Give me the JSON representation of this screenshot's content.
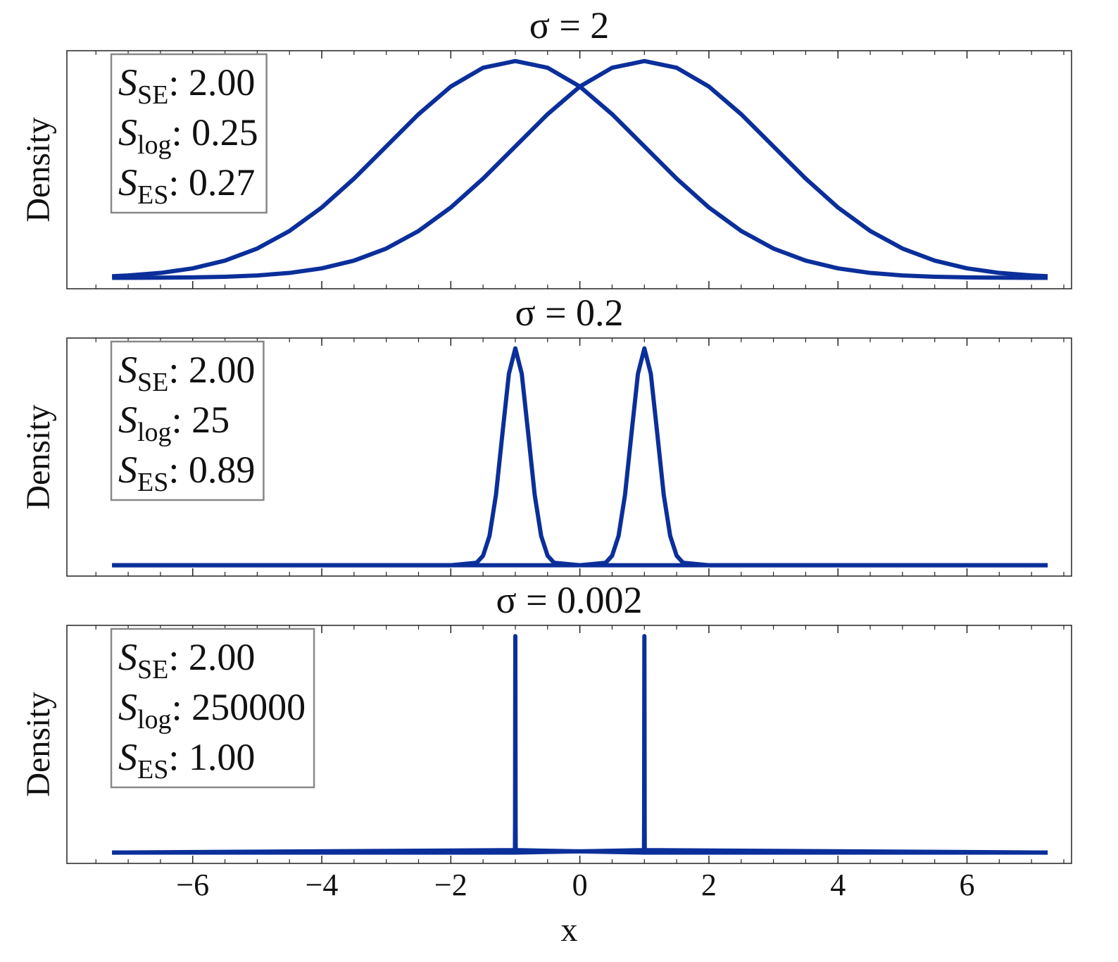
{
  "chart_data": [
    {
      "type": "line",
      "title": "σ = 2",
      "ylabel": "Density",
      "x": [
        -7.25,
        -7,
        -6.5,
        -6,
        -5.5,
        -5,
        -4.5,
        -4,
        -3.5,
        -3,
        -2.5,
        -2,
        -1.5,
        -1,
        -0.5,
        0,
        0.5,
        1,
        1.5,
        2,
        2.5,
        3,
        3.5,
        4,
        4.5,
        5,
        5.5,
        6,
        6.5,
        7,
        7.25
      ],
      "series": [
        {
          "color": "#0b2f9a",
          "values": [
            0.00151,
            0.00222,
            0.00455,
            0.00876,
            0.01587,
            0.027,
            0.04314,
            0.06476,
            0.09132,
            0.12098,
            0.15057,
            0.17603,
            0.19333,
            0.19947,
            0.19333,
            0.17603,
            0.15057,
            0.12098,
            0.09132,
            0.06476,
            0.04314,
            0.027,
            0.01587,
            0.00876,
            0.00455,
            0.00222,
            0.00101,
            0.00044,
            0.00018,
            7e-05,
            4e-05
          ]
        },
        {
          "color": "#0b2f9a",
          "values": [
            4e-05,
            7e-05,
            0.00018,
            0.00044,
            0.00101,
            0.00222,
            0.00455,
            0.00876,
            0.01587,
            0.027,
            0.04314,
            0.06476,
            0.09132,
            0.12098,
            0.15057,
            0.17603,
            0.19333,
            0.19947,
            0.19333,
            0.17603,
            0.15057,
            0.12098,
            0.09132,
            0.06476,
            0.04314,
            0.027,
            0.01587,
            0.00876,
            0.00455,
            0.00222,
            0.00151
          ]
        }
      ],
      "xlim": [
        -7.95,
        7.62
      ],
      "ylim": [
        -0.01,
        0.209
      ],
      "xticks": [
        -6,
        -4,
        -2,
        0,
        2,
        4,
        6
      ],
      "xminorticks": [
        -7.5,
        -7,
        -6.5,
        -5.5,
        -5,
        -4.5,
        -3.5,
        -3,
        -2.5,
        -1.5,
        -1,
        -0.5,
        0.5,
        1,
        1.5,
        2.5,
        3,
        3.5,
        4.5,
        5,
        5.5,
        6.5,
        7,
        7.5
      ],
      "show_xticklabels": false,
      "annotations": [
        {
          "symbol": "S",
          "subscript": "SE",
          "text": ": 2.00"
        },
        {
          "symbol": "S",
          "subscript": "log",
          "text": ": 0.25"
        },
        {
          "symbol": "S",
          "subscript": "ES",
          "text": ": 0.27"
        }
      ]
    },
    {
      "type": "line",
      "title": "σ = 0.2",
      "ylabel": "Density",
      "x": [
        -7.25,
        -2,
        -1.6,
        -1.5,
        -1.4,
        -1.3,
        -1.2,
        -1.1,
        -1,
        -0.9,
        -0.8,
        -0.7,
        -0.6,
        -0.5,
        -0.4,
        0,
        0.4,
        0.5,
        0.6,
        0.7,
        0.8,
        0.9,
        1,
        1.1,
        1.2,
        1.3,
        1.4,
        1.5,
        1.6,
        2,
        7.25
      ],
      "series": [
        {
          "color": "#0b2f9a",
          "values": [
            0,
            0,
            0.0222,
            0.0876,
            0.27,
            0.6476,
            1.2098,
            1.7603,
            1.9947,
            1.7603,
            1.2098,
            0.6476,
            0.27,
            0.0876,
            0.0222,
            0,
            0,
            0,
            0,
            0,
            0,
            0,
            0,
            0,
            0,
            0,
            0,
            0,
            0,
            0,
            0
          ]
        },
        {
          "color": "#0b2f9a",
          "values": [
            0,
            0,
            0,
            0,
            0,
            0,
            0,
            0,
            0,
            0,
            0,
            0,
            0,
            0,
            0,
            0,
            0.0222,
            0.0876,
            0.27,
            0.6476,
            1.2098,
            1.7603,
            1.9947,
            1.7603,
            1.2098,
            0.6476,
            0.27,
            0.0876,
            0.0222,
            0,
            0
          ]
        }
      ],
      "xlim": [
        -7.95,
        7.62
      ],
      "ylim": [
        -0.1,
        2.09
      ],
      "xticks": [
        -6,
        -4,
        -2,
        0,
        2,
        4,
        6
      ],
      "xminorticks": [
        -7.5,
        -7,
        -6.5,
        -5.5,
        -5,
        -4.5,
        -3.5,
        -3,
        -2.5,
        -1.5,
        -1,
        -0.5,
        0.5,
        1,
        1.5,
        2.5,
        3,
        3.5,
        4.5,
        5,
        5.5,
        6.5,
        7,
        7.5
      ],
      "show_xticklabels": false,
      "annotations": [
        {
          "symbol": "S",
          "subscript": "SE",
          "text": ": 2.00"
        },
        {
          "symbol": "S",
          "subscript": "log",
          "text": ": 25"
        },
        {
          "symbol": "S",
          "subscript": "ES",
          "text": ": 0.89"
        }
      ]
    },
    {
      "type": "line",
      "title": "σ = 0.002",
      "ylabel": "Density",
      "xlabel": "x",
      "x": [
        -7.25,
        -1.006,
        -1.004,
        -1.002,
        -1,
        -0.998,
        -0.996,
        -0.994,
        0.994,
        0.996,
        0.998,
        1,
        1.002,
        1.004,
        1.006,
        7.25
      ],
      "series": [
        {
          "color": "#0b2f9a",
          "values": [
            0,
            2.22,
            27,
            120.98,
            199.47,
            120.98,
            27,
            2.22,
            0,
            0,
            0,
            0,
            0,
            0,
            0,
            0
          ]
        },
        {
          "color": "#0b2f9a",
          "values": [
            0,
            0,
            0,
            0,
            0,
            0,
            0,
            0,
            2.22,
            27,
            120.98,
            199.47,
            120.98,
            27,
            2.22,
            0
          ]
        }
      ],
      "xlim": [
        -7.95,
        7.62
      ],
      "ylim": [
        -10,
        209.4
      ],
      "xticks": [
        -6,
        -4,
        -2,
        0,
        2,
        4,
        6
      ],
      "xminorticks": [
        -7.5,
        -7,
        -6.5,
        -5.5,
        -5,
        -4.5,
        -3.5,
        -3,
        -2.5,
        -1.5,
        -1,
        -0.5,
        0.5,
        1,
        1.5,
        2.5,
        3,
        3.5,
        4.5,
        5,
        5.5,
        6.5,
        7,
        7.5
      ],
      "show_xticklabels": true,
      "annotations": [
        {
          "symbol": "S",
          "subscript": "SE",
          "text": ": 2.00"
        },
        {
          "symbol": "S",
          "subscript": "log",
          "text": ": 250000"
        },
        {
          "symbol": "S",
          "subscript": "ES",
          "text": ": 1.00"
        }
      ]
    }
  ]
}
